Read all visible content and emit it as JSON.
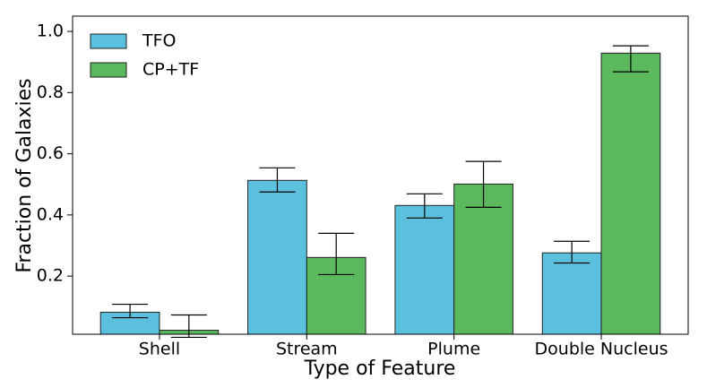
{
  "chart_data": {
    "type": "bar",
    "xlabel": "Type of Feature",
    "ylabel": "Fraction of Galaxies",
    "categories": [
      "Shell",
      "Stream",
      "Plume",
      "Double Nucleus"
    ],
    "series": [
      {
        "name": "TFO",
        "color": "#5bc0de",
        "values": [
          0.082,
          0.513,
          0.431,
          0.276
        ],
        "err_minus": [
          0.018,
          0.038,
          0.041,
          0.033
        ],
        "err_plus": [
          0.026,
          0.041,
          0.038,
          0.038
        ]
      },
      {
        "name": "CP+TF",
        "color": "#5cb85c",
        "values": [
          0.023,
          0.261,
          0.501,
          0.929
        ],
        "err_minus": [
          0.023,
          0.056,
          0.076,
          0.061
        ],
        "err_plus": [
          0.05,
          0.079,
          0.074,
          0.024
        ]
      }
    ],
    "ylim": [
      0.01,
      1.05
    ],
    "yticks": [
      0.2,
      0.4,
      0.6,
      0.8,
      {
        "value": 1,
        "label": "1.0"
      }
    ],
    "legend": "upper left",
    "grid": false
  }
}
